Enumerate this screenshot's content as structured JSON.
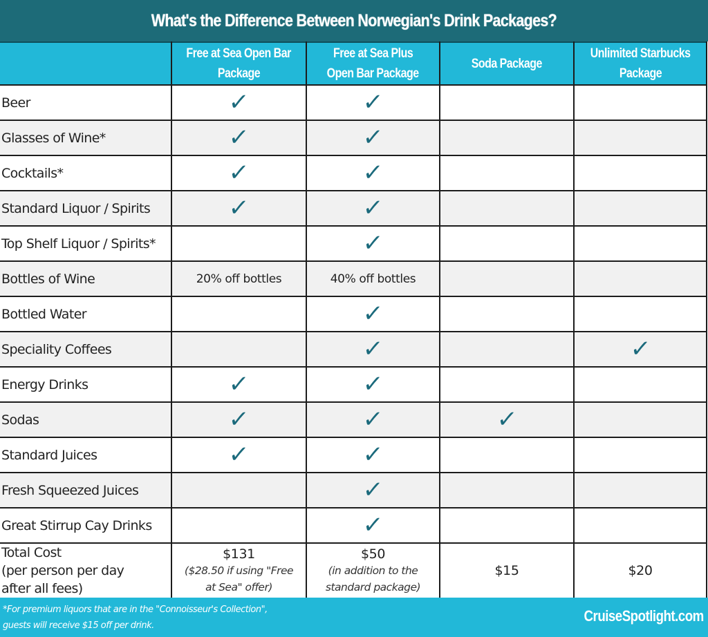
{
  "title": "What's the Difference Between Norwegian's Drink Packages?",
  "columns": [
    {
      "line1": "",
      "line2": ""
    },
    {
      "line1": "Free at Sea Open Bar",
      "line2": "Package"
    },
    {
      "line1": "Free at Sea Plus",
      "line2": "Open Bar Package"
    },
    {
      "line1": "Soda Package",
      "line2": ""
    },
    {
      "line1": "Unlimited Starbucks",
      "line2": "Package"
    }
  ],
  "check_glyph": "✓",
  "check_color": "#1b6a7c",
  "rows": [
    {
      "label": "Beer",
      "cells": [
        "✓",
        "✓",
        "",
        ""
      ]
    },
    {
      "label": "Glasses of Wine*",
      "cells": [
        "✓",
        "✓",
        "",
        ""
      ]
    },
    {
      "label": "Cocktails*",
      "cells": [
        "✓",
        "✓",
        "",
        ""
      ]
    },
    {
      "label": "Standard Liquor / Spirits",
      "cells": [
        "✓",
        "✓",
        "",
        ""
      ]
    },
    {
      "label": "Top Shelf Liquor / Spirits*",
      "cells": [
        "",
        "✓",
        "",
        ""
      ]
    },
    {
      "label": "Bottles of Wine",
      "cells": [
        "20% off bottles",
        "40% off bottles",
        "",
        ""
      ]
    },
    {
      "label": "Bottled Water",
      "cells": [
        "",
        "✓",
        "",
        ""
      ]
    },
    {
      "label": "Speciality Coffees",
      "cells": [
        "",
        "✓",
        "",
        "✓"
      ]
    },
    {
      "label": "Energy Drinks",
      "cells": [
        "✓",
        "✓",
        "",
        ""
      ]
    },
    {
      "label": "Sodas",
      "cells": [
        "✓",
        "✓",
        "✓",
        ""
      ]
    },
    {
      "label": "Standard Juices",
      "cells": [
        "✓",
        "✓",
        "",
        ""
      ]
    },
    {
      "label": "Fresh Squeezed Juices",
      "cells": [
        "",
        "✓",
        "",
        ""
      ]
    },
    {
      "label": "Great Stirrup Cay Drinks",
      "cells": [
        "",
        "✓",
        "",
        ""
      ]
    }
  ],
  "total": {
    "label_lines": [
      "Total Cost",
      "(per person per day",
      "after all fees)"
    ],
    "cells": [
      {
        "main": "$131",
        "note1": "($28.50 if using \"Free",
        "note2": "at Sea\" offer)"
      },
      {
        "main": "$50",
        "note1": "(in addition to the",
        "note2": "standard package)"
      },
      {
        "main": "$15",
        "note1": "",
        "note2": ""
      },
      {
        "main": "$20",
        "note1": "",
        "note2": ""
      }
    ]
  },
  "footer": {
    "note_line1": "*For premium liquors that are in the \"Connoisseur's Collection\",",
    "note_line2": "guests will receive $15 off per drink.",
    "brand": "CruiseSpotlight.com"
  }
}
